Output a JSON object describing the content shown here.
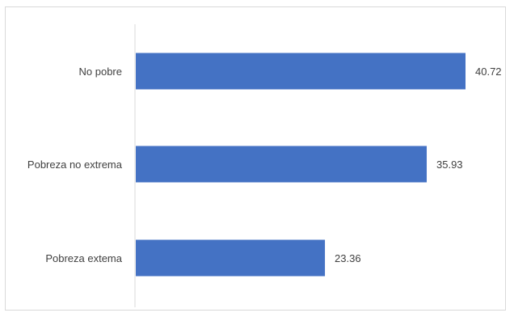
{
  "chart_data": {
    "type": "bar",
    "orientation": "horizontal",
    "categories": [
      "No pobre",
      "Pobreza no extrema",
      "Pobreza extema"
    ],
    "values": [
      40.72,
      35.93,
      23.36
    ],
    "data_labels": [
      "40.72",
      "35.93",
      "23.36"
    ],
    "xlim": [
      0,
      45
    ],
    "grid": false,
    "legend": "none",
    "bar_color": "#4472C4"
  }
}
